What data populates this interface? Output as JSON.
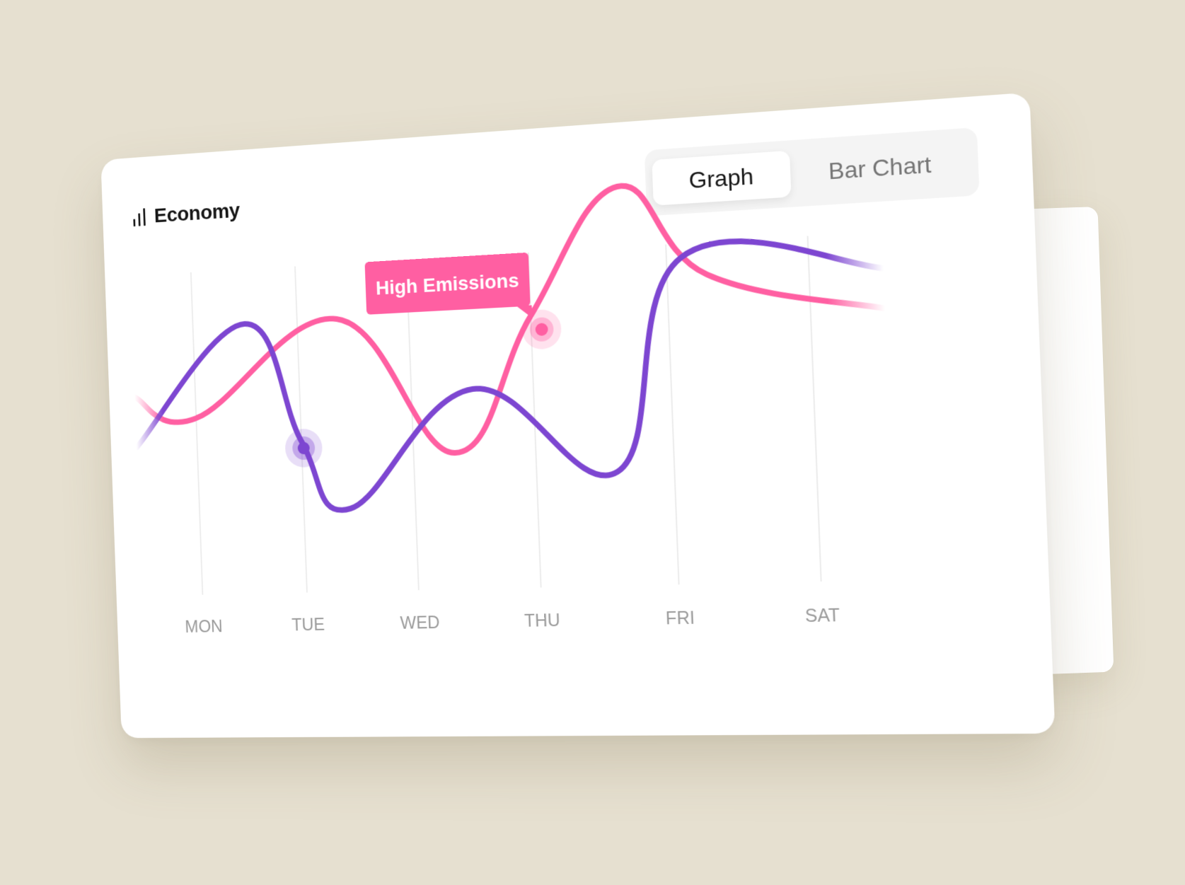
{
  "title": "Economy",
  "toggle": {
    "active": "Graph",
    "inactive": "Bar Chart"
  },
  "tooltip": {
    "label": "High Emissions"
  },
  "colors": {
    "pink": "#ff5fa2",
    "purple": "#7d46d1",
    "background": "#e6e0d0"
  },
  "chart_data": {
    "type": "line",
    "categories": [
      "MON",
      "TUE",
      "WED",
      "THU",
      "FRI",
      "SAT"
    ],
    "series": [
      {
        "color": "#ff5fa2",
        "values": [
          69,
          75,
          29,
          112,
          172,
          153
        ],
        "highlight_index": 3
      },
      {
        "color": "#7d46d1",
        "values": [
          89,
          63,
          77,
          105,
          147,
          163
        ],
        "highlight_index": 1
      }
    ],
    "grid": true,
    "legend": "none"
  }
}
